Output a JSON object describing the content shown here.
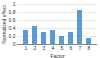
{
  "chart_data": {
    "type": "bar",
    "x_label": "Factor",
    "y_label": "Normalized effect",
    "categories": [
      "1",
      "2",
      "3",
      "4",
      "5",
      "6",
      "7",
      "8"
    ],
    "values": [
      0.35,
      0.45,
      0.3,
      0.35,
      0.2,
      0.3,
      0.85,
      0.15
    ],
    "color": "#5b9bd5",
    "ylim": [
      0,
      1
    ],
    "yticks": [
      0,
      0.2,
      0.4,
      0.6,
      0.8,
      1
    ],
    "grid": true
  }
}
